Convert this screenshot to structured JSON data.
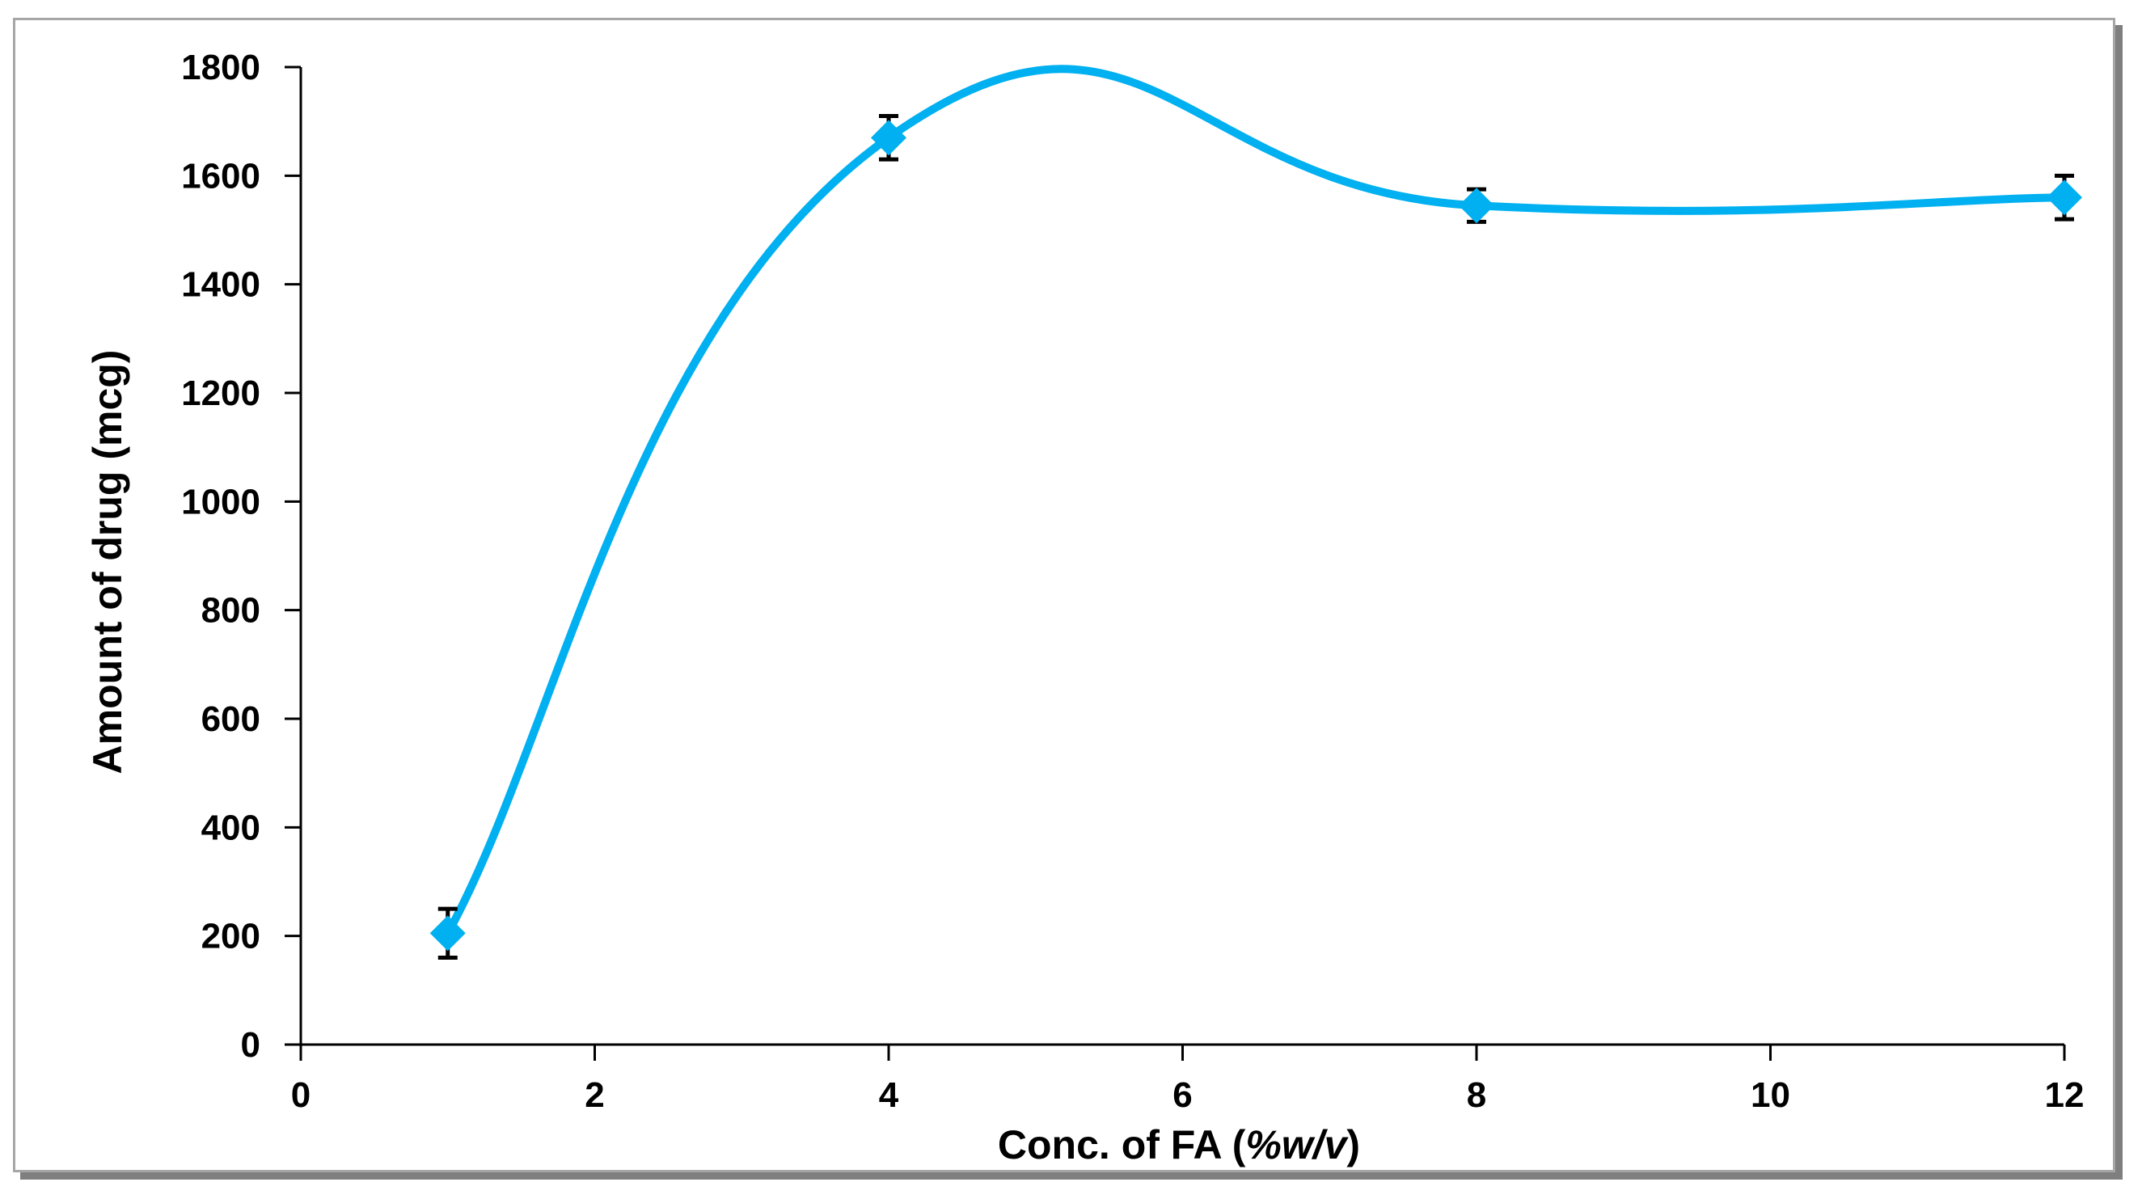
{
  "chart_data": {
    "type": "line",
    "title": "",
    "xlabel_parts": [
      "Conc. of FA (",
      "%w/v",
      ")"
    ],
    "ylabel": "Amount of drug (mcg)",
    "xlim": [
      0,
      12
    ],
    "ylim": [
      0,
      1800
    ],
    "x_ticks": [
      0,
      2,
      4,
      6,
      8,
      10,
      12
    ],
    "y_ticks": [
      0,
      200,
      400,
      600,
      800,
      1000,
      1200,
      1400,
      1600,
      1800
    ],
    "grid": false,
    "legend": "none",
    "smooth": true,
    "series": [
      {
        "color": "#00b0f0",
        "marker": "diamond",
        "points": [
          {
            "x": 1,
            "y": 205,
            "err": 45
          },
          {
            "x": 4,
            "y": 1670,
            "err": 40
          },
          {
            "x": 8,
            "y": 1545,
            "err": 30
          },
          {
            "x": 12,
            "y": 1560,
            "err": 40
          }
        ]
      }
    ]
  }
}
